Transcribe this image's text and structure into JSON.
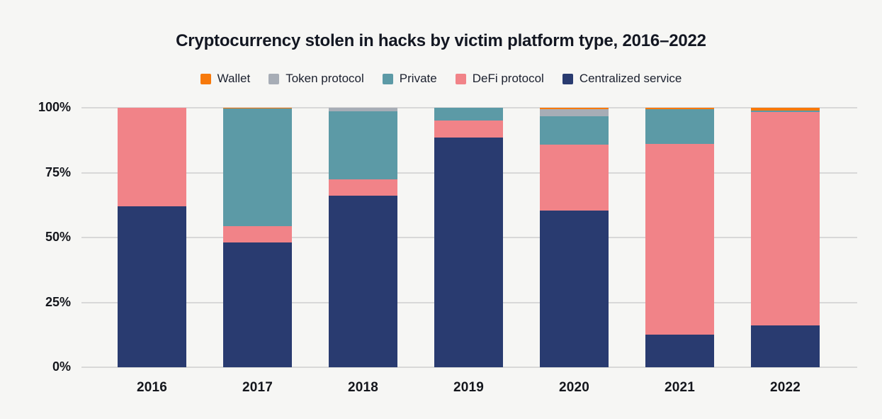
{
  "title": "Cryptocurrency stolen in hacks by victim platform type, 2016–2022",
  "legend": [
    {
      "label": "Wallet",
      "color": "#F7790B"
    },
    {
      "label": "Token protocol",
      "color": "#A7ADB6"
    },
    {
      "label": "Private",
      "color": "#5C9AA6"
    },
    {
      "label": "DeFi protocol",
      "color": "#F18388"
    },
    {
      "label": "Centralized service",
      "color": "#293B70"
    }
  ],
  "chart_data": {
    "type": "bar",
    "stacked": true,
    "unit": "percent of total stolen per year",
    "title": "Cryptocurrency stolen in hacks by victim platform type, 2016–2022",
    "categories": [
      "2016",
      "2017",
      "2018",
      "2019",
      "2020",
      "2021",
      "2022"
    ],
    "series": [
      {
        "name": "Centralized service",
        "color": "#293B70",
        "values": [
          62.0,
          48.0,
          66.0,
          88.4,
          60.3,
          12.7,
          16.1
        ]
      },
      {
        "name": "DeFi protocol",
        "color": "#F18388",
        "values": [
          38.0,
          6.3,
          6.5,
          6.8,
          25.6,
          73.4,
          82.4
        ]
      },
      {
        "name": "Private",
        "color": "#5C9AA6",
        "values": [
          0.0,
          45.4,
          26.1,
          4.8,
          10.9,
          13.3,
          0.3
        ]
      },
      {
        "name": "Token protocol",
        "color": "#A7ADB6",
        "values": [
          0.0,
          0.0,
          1.4,
          0.0,
          2.8,
          0.0,
          0.0
        ]
      },
      {
        "name": "Wallet",
        "color": "#F7790B",
        "values": [
          0.0,
          0.3,
          0.0,
          0.0,
          0.4,
          0.6,
          1.2
        ]
      }
    ],
    "ylabel": "",
    "xlabel": "",
    "ylim": [
      0,
      100
    ],
    "ytick_labels": [
      "0%",
      "25%",
      "50%",
      "75%",
      "100%"
    ],
    "ytick_values": [
      0,
      25,
      50,
      75,
      100
    ],
    "grid": true,
    "legend_position": "top",
    "legend_order": [
      "Wallet",
      "Token protocol",
      "Private",
      "DeFi protocol",
      "Centralized service"
    ]
  },
  "colors": {
    "background": "#F6F6F4",
    "gridline": "#D8D8D8",
    "axis_text": "#14161C",
    "title_text": "#131722"
  }
}
